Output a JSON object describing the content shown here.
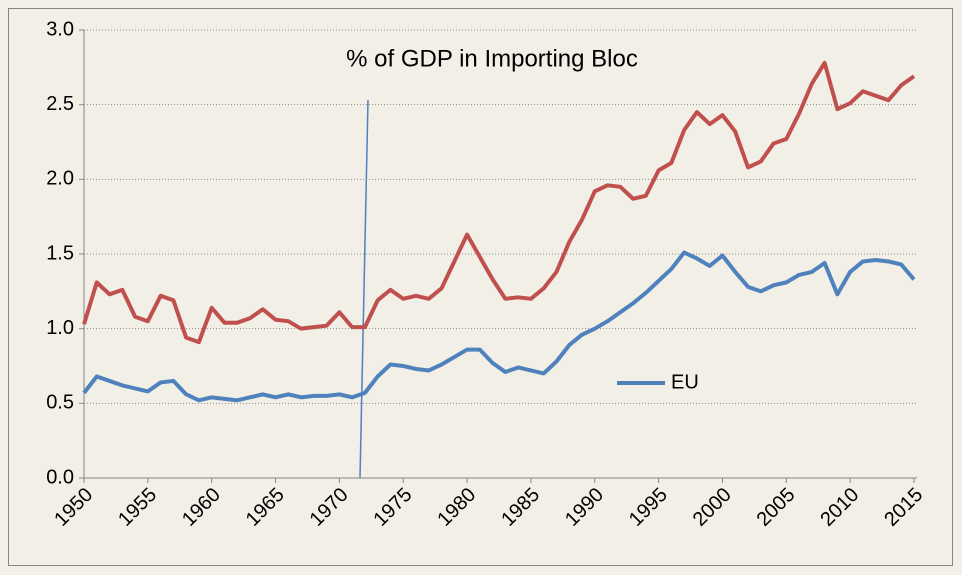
{
  "chart_data": {
    "type": "line",
    "title": "% of GDP in Importing Bloc",
    "x": [
      1950,
      1951,
      1952,
      1953,
      1954,
      1955,
      1956,
      1957,
      1958,
      1959,
      1960,
      1961,
      1962,
      1963,
      1964,
      1965,
      1966,
      1967,
      1968,
      1969,
      1970,
      1971,
      1972,
      1973,
      1974,
      1975,
      1976,
      1977,
      1978,
      1979,
      1980,
      1981,
      1982,
      1983,
      1984,
      1985,
      1986,
      1987,
      1988,
      1989,
      1990,
      1991,
      1992,
      1993,
      1994,
      1995,
      1996,
      1997,
      1998,
      1999,
      2000,
      2001,
      2002,
      2003,
      2004,
      2005,
      2006,
      2007,
      2008,
      2009,
      2010,
      2011,
      2012,
      2013,
      2014,
      2015
    ],
    "series": [
      {
        "color": "#c0504d",
        "values": [
          1.03,
          1.31,
          1.23,
          1.26,
          1.08,
          1.05,
          1.22,
          1.19,
          0.94,
          0.91,
          1.14,
          1.04,
          1.04,
          1.07,
          1.13,
          1.06,
          1.05,
          1.0,
          1.01,
          1.02,
          1.11,
          1.01,
          1.01,
          1.19,
          1.26,
          1.2,
          1.22,
          1.2,
          1.27,
          1.45,
          1.63,
          1.48,
          1.33,
          1.2,
          1.21,
          1.2,
          1.27,
          1.38,
          1.58,
          1.73,
          1.92,
          1.96,
          1.95,
          1.87,
          1.89,
          2.06,
          2.11,
          2.33,
          2.45,
          2.37,
          2.43,
          2.32,
          2.08,
          2.12,
          2.24,
          2.27,
          2.44,
          2.64,
          2.78,
          2.47,
          2.51,
          2.59,
          2.56,
          2.53,
          2.63,
          2.69
        ]
      },
      {
        "name": "EU",
        "color": "#4f81bd",
        "values": [
          0.57,
          0.68,
          0.65,
          0.62,
          0.6,
          0.58,
          0.64,
          0.65,
          0.56,
          0.52,
          0.54,
          0.53,
          0.52,
          0.54,
          0.56,
          0.54,
          0.56,
          0.54,
          0.55,
          0.55,
          0.56,
          0.54,
          0.57,
          0.68,
          0.76,
          0.75,
          0.73,
          0.72,
          0.76,
          0.81,
          0.86,
          0.86,
          0.77,
          0.71,
          0.74,
          0.72,
          0.7,
          0.78,
          0.89,
          0.96,
          1.0,
          1.05,
          1.11,
          1.17,
          1.24,
          1.32,
          1.4,
          1.51,
          1.47,
          1.42,
          1.49,
          1.38,
          1.28,
          1.25,
          1.29,
          1.31,
          1.36,
          1.38,
          1.44,
          1.23,
          1.38,
          1.45,
          1.46,
          1.45,
          1.43,
          1.33
        ]
      }
    ],
    "xlim": [
      1950,
      2015
    ],
    "xticks": [
      1950,
      1955,
      1960,
      1965,
      1970,
      1975,
      1980,
      1985,
      1990,
      1995,
      2000,
      2005,
      2010,
      2015
    ],
    "ylim": [
      0,
      3
    ],
    "yticks": [
      {
        "value": 0,
        "label": "0.0"
      },
      0.5,
      {
        "value": 1,
        "label": "1.0"
      },
      1.5,
      {
        "value": 2,
        "label": "2.0"
      },
      2.5,
      {
        "value": 3,
        "label": "3.0"
      }
    ],
    "grid": true
  }
}
